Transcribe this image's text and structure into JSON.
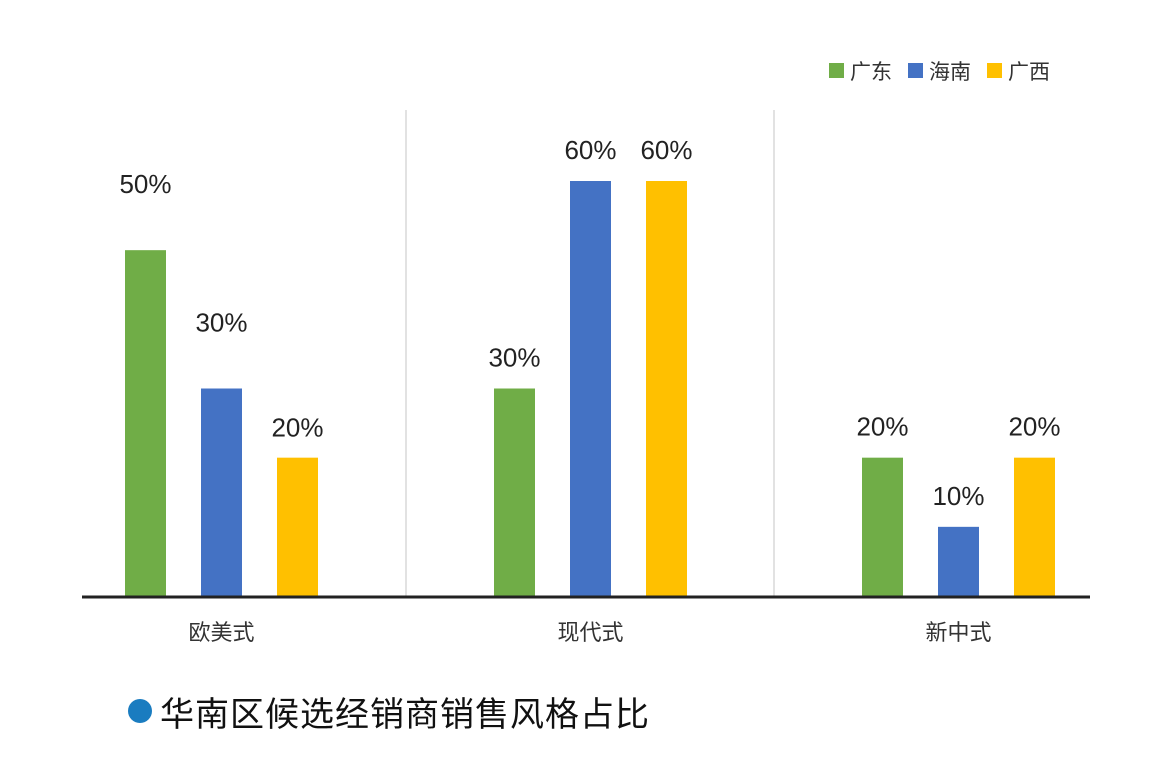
{
  "chart_data": {
    "type": "bar",
    "title": "华南区候选经销商销售风格占比",
    "categories": [
      "欧美式",
      "现代式",
      "新中式"
    ],
    "series": [
      {
        "name": "广东",
        "color": "#70ad47",
        "values": [
          50,
          30,
          20
        ],
        "labels": [
          "50%",
          "30%",
          "20%"
        ]
      },
      {
        "name": "海南",
        "color": "#4472c4",
        "values": [
          30,
          60,
          10
        ],
        "labels": [
          "30%",
          "60%",
          "10%"
        ]
      },
      {
        "name": "广西",
        "color": "#ffc000",
        "values": [
          20,
          60,
          20
        ],
        "labels": [
          "20%",
          "60%",
          "20%"
        ]
      }
    ],
    "ylim": [
      0,
      60
    ],
    "legend": "top-right",
    "grid": false,
    "xlabel": "",
    "ylabel": ""
  }
}
